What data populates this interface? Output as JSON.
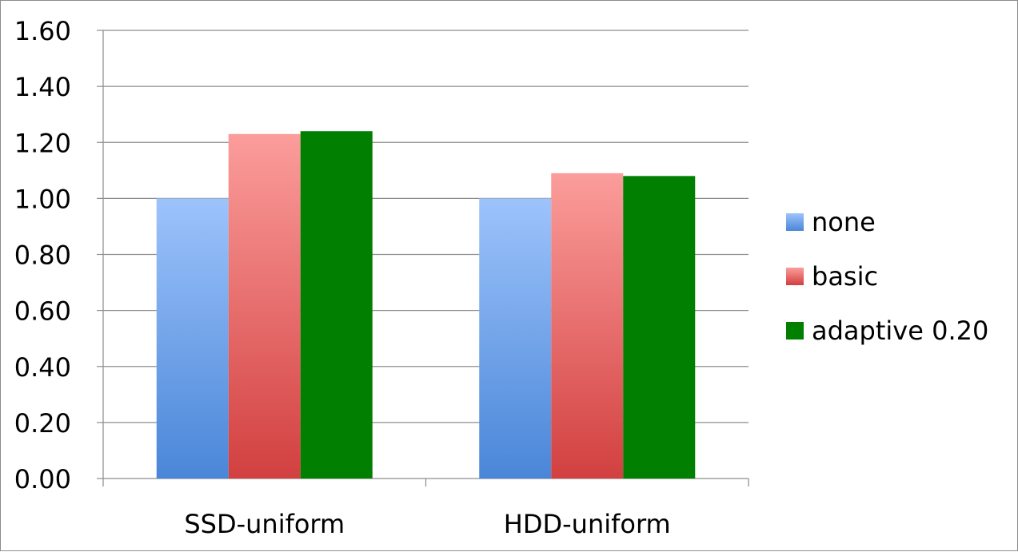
{
  "chart_data": {
    "type": "bar",
    "categories": [
      "SSD-uniform",
      "HDD-uniform"
    ],
    "series": [
      {
        "name": "none",
        "values": [
          1.0,
          1.0
        ],
        "color": "#4a86d8",
        "color_light": "#9dc3fb"
      },
      {
        "name": "basic",
        "values": [
          1.23,
          1.09
        ],
        "color": "#d24040",
        "color_light": "#fb9d9b"
      },
      {
        "name": "adaptive 0.20",
        "values": [
          1.24,
          1.08
        ],
        "color": "#007f00",
        "color_light": "#007f00"
      }
    ],
    "title": "",
    "xlabel": "",
    "ylabel": "",
    "ylim": [
      0,
      1.6
    ],
    "yticks": [
      "0.00",
      "0.20",
      "0.40",
      "0.60",
      "0.80",
      "1.00",
      "1.20",
      "1.40",
      "1.60"
    ],
    "grid": true,
    "legend_position": "right"
  }
}
